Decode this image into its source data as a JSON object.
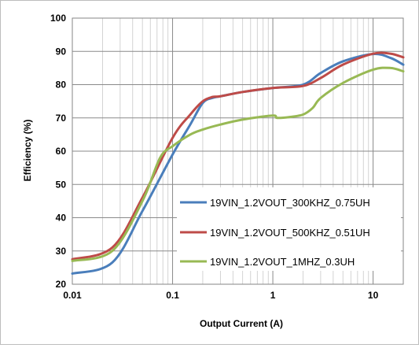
{
  "chart_data": {
    "type": "line",
    "title": "",
    "xlabel": "Output Current (A)",
    "ylabel": "Efficiency (%)",
    "x_scale": "log",
    "xlim": [
      0.01,
      20
    ],
    "ylim": [
      20,
      100
    ],
    "grid": true,
    "legend_position": "center-right",
    "x_ticks": [
      0.01,
      0.1,
      1,
      10
    ],
    "x_tick_labels": [
      "0.01",
      "0.1",
      "1",
      "10"
    ],
    "y_ticks": [
      20,
      30,
      40,
      50,
      60,
      70,
      80,
      90,
      100
    ],
    "y_tick_labels": [
      "20",
      "30",
      "40",
      "50",
      "60",
      "70",
      "80",
      "90",
      "100"
    ],
    "series": [
      {
        "name": "19VIN_1.2VOUT_300KHZ_0.75UH",
        "color": "#4a7ebb",
        "x": [
          0.01,
          0.025,
          0.05,
          0.1,
          0.15,
          0.2,
          0.25,
          0.3,
          0.5,
          1,
          2,
          3,
          5,
          10,
          15,
          20
        ],
        "y": [
          23.2,
          26.5,
          42,
          59,
          68,
          74.5,
          76,
          76.5,
          77.8,
          79,
          80,
          83.5,
          87,
          89.2,
          88,
          86
        ]
      },
      {
        "name": "19VIN_1.2VOUT_500KHZ_0.51UH",
        "color": "#be4b48",
        "x": [
          0.01,
          0.025,
          0.05,
          0.1,
          0.15,
          0.2,
          0.25,
          0.3,
          0.5,
          1,
          2,
          3,
          5,
          10,
          15,
          20
        ],
        "y": [
          27.5,
          31,
          46,
          64,
          71,
          75,
          76.3,
          76.5,
          77.8,
          79,
          79.6,
          82,
          86,
          89.3,
          89.3,
          88.2
        ]
      },
      {
        "name": "19VIN_1.2VOUT_1MHZ_0.3UH",
        "color": "#98b954",
        "x": [
          0.01,
          0.025,
          0.05,
          0.075,
          0.1,
          0.15,
          0.2,
          0.3,
          0.5,
          1,
          1.1,
          1.5,
          2,
          2.5,
          3,
          5,
          10,
          15,
          20
        ],
        "y": [
          27,
          30,
          45,
          58,
          61.5,
          65,
          66.5,
          68,
          69.5,
          70.7,
          70,
          70.3,
          71,
          73,
          76,
          80.5,
          84.5,
          85,
          84
        ]
      }
    ]
  }
}
